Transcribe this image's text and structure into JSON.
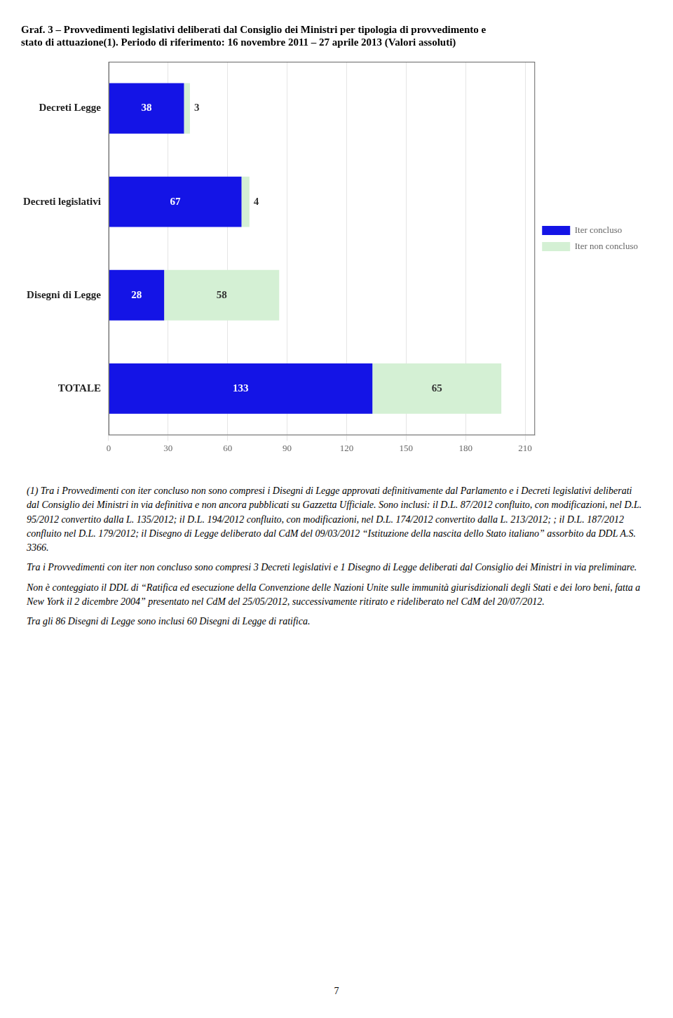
{
  "chart_data": {
    "type": "bar",
    "orientation": "horizontal",
    "stacked": true,
    "title": [
      "Graf. 3 – Provvedimenti legislativi deliberati dal Consiglio dei Ministri per tipologia di provvedimento e",
      "stato di attuazione(1). Periodo di riferimento: 16 novembre 2011 – 27 aprile 2013 (Valori assoluti)"
    ],
    "categories": [
      "Decreti Legge",
      "Decreti legislativi",
      "Disegni di Legge",
      "TOTALE"
    ],
    "series": [
      {
        "name": "Iter concluso",
        "color": "#1414e6",
        "values": [
          38,
          67,
          28,
          133
        ]
      },
      {
        "name": "Iter non concluso",
        "color": "#d4f0d4",
        "values": [
          3,
          4,
          58,
          65
        ]
      }
    ],
    "xlim": [
      0,
      215
    ],
    "xticks": [
      0,
      30,
      60,
      90,
      120,
      150,
      180,
      210
    ],
    "grid": true,
    "legend": "right",
    "data_labels": true,
    "annotations": [
      "(1)  Tra i Provvedimenti con iter concluso non sono compresi i Disegni di Legge approvati definitivamente dal Parlamento e i Decreti legislativi deliberati dal Consiglio dei Ministri in via definitiva e non ancora pubblicati su Gazzetta Ufficiale. Sono inclusi: il D.L. 87/2012 confluito, con modificazioni, nel D.L. 95/2012 convertito dalla L. 135/2012; il D.L. 194/2012 confluito, con modificazioni, nel D.L. 174/2012 convertito dalla L. 213/2012; ; il D.L. 187/2012 confluito nel D.L. 179/2012; il Disegno di Legge deliberato dal CdM del 09/03/2012 “Istituzione della nascita dello Stato italiano” assorbito da DDL A.S. 3366.",
      "Tra i Provvedimenti con iter non concluso sono compresi 3 Decreti legislativi e 1 Disegno di Legge deliberati dal Consiglio dei Ministri in via preliminare.",
      "Non è conteggiato il DDL di “Ratifica ed esecuzione della Convenzione delle Nazioni Unite sulle immunità giurisdizionali degli Stati e dei loro beni, fatta a New York il 2 dicembre 2004” presentato nel CdM del 25/05/2012, successivamente ritirato e rideliberato nel CdM del 20/07/2012.",
      "Tra gli 86 Disegni di Legge sono inclusi 60 Disegni di Legge di ratifica.",
      "7"
    ]
  }
}
